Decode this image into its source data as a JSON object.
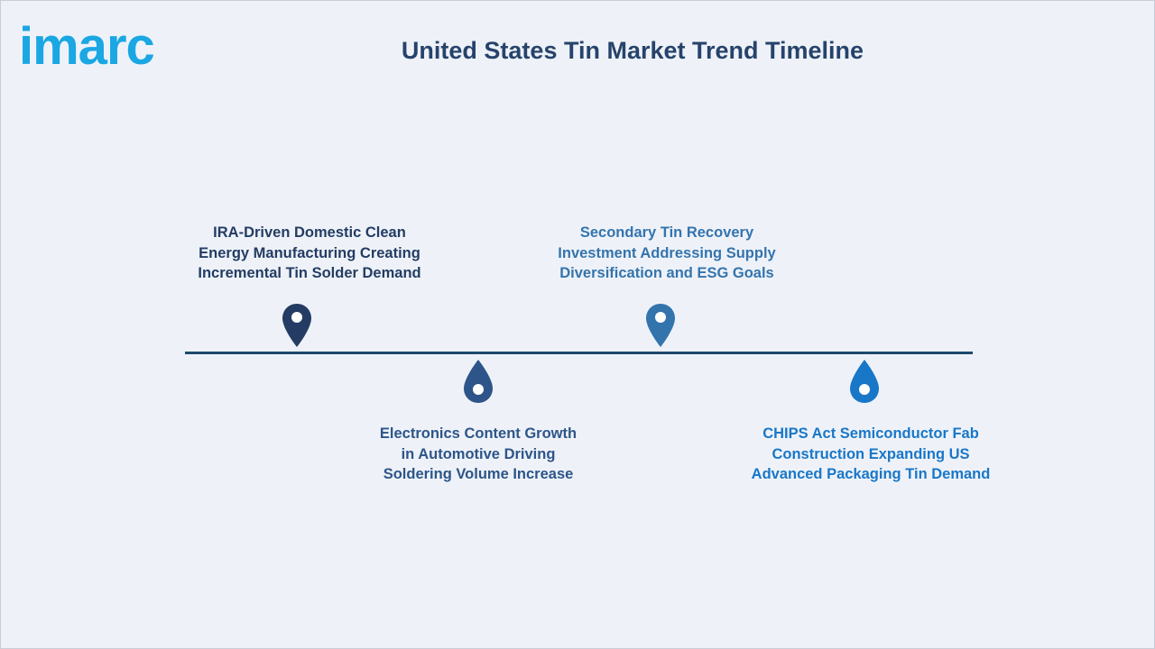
{
  "logo": {
    "text": "imarc"
  },
  "title": "United States Tin Market Trend Timeline",
  "events": [
    {
      "lines": [
        "IRA-Driven Domestic Clean",
        "Energy Manufacturing Creating",
        "Incremental Tin Solder Demand"
      ],
      "color": "#243c63"
    },
    {
      "lines": [
        "Electronics Content Growth",
        "in Automotive Driving",
        "Soldering Volume Increase"
      ],
      "color": "#2d5589"
    },
    {
      "lines": [
        "Secondary Tin Recovery",
        "Investment Addressing Supply",
        "Diversification and ESG Goals"
      ],
      "color": "#3474ad"
    },
    {
      "lines": [
        "CHIPS Act Semiconductor Fab",
        "Construction Expanding US",
        "Advanced Packaging Tin Demand"
      ],
      "color": "#1977c8"
    }
  ],
  "colors": {
    "title": "#26436b",
    "line": "#1e4a6d",
    "logo": "#1aa7e3"
  },
  "icons": {
    "above": "map-pin-icon",
    "below": "drop-marker-icon"
  }
}
